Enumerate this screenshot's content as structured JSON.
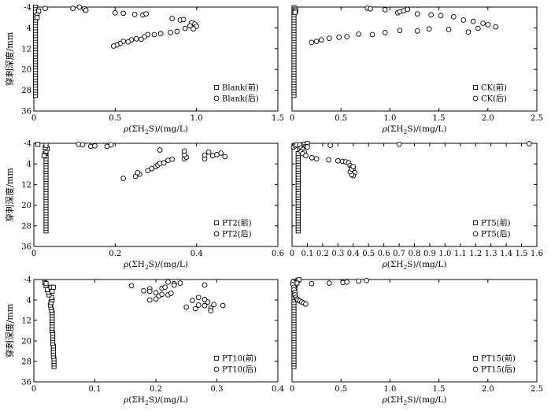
{
  "figure": {
    "ylabel": "穿刺深度/mm",
    "xlabel_prefix": "ρ(ΣH",
    "xlabel_sub": "2",
    "xlabel_suffix": "S)/(mg/L)"
  },
  "chart_data": [
    {
      "type": "scatter",
      "panel": "Blank",
      "xlim": [
        0,
        1.5
      ],
      "xticks": [
        "0",
        "0.5",
        "1.0",
        "1.5"
      ],
      "xtick_values": [
        0,
        0.5,
        1.0,
        1.5
      ],
      "ylim": [
        -4,
        36
      ],
      "yticks": [
        "-4",
        "4",
        "12",
        "20",
        "28",
        "36"
      ],
      "ytick_values": [
        -4,
        4,
        12,
        20,
        28,
        36
      ],
      "y_inverted": true,
      "legend_position": "lower-right",
      "series": [
        {
          "name": "Blank(前)",
          "marker": "square",
          "x": [
            0.01,
            0.01,
            0.01,
            0.01,
            0.01,
            0.01,
            0.01,
            0.01,
            0.01,
            0.01,
            0.01,
            0.01,
            0.01,
            0.01,
            0.01,
            0.01,
            0.01,
            0.01,
            0.01,
            0.01,
            0.01,
            0.01,
            0.01,
            0.01,
            0.01,
            0.01,
            0.01,
            0.01,
            0.01,
            0.01,
            0.01,
            0.01,
            0.01,
            0.01,
            0.01,
            0.01,
            0.01,
            0.02,
            0.02,
            0.03
          ],
          "y": [
            30,
            29,
            28,
            27,
            26,
            25,
            24,
            23,
            22,
            21,
            20,
            19,
            18,
            17,
            16,
            15,
            14,
            13,
            12,
            11,
            10,
            9,
            8,
            7,
            6,
            5,
            4,
            3,
            2,
            1,
            0,
            -1,
            -2,
            -3,
            -4,
            -3,
            -2,
            -1,
            0,
            -2.5
          ]
        },
        {
          "name": "Blank(后)",
          "marker": "circle",
          "x": [
            0.07,
            0.24,
            0.28,
            0.31,
            0.32,
            0.5,
            0.55,
            0.62,
            0.67,
            0.69,
            0.85,
            0.9,
            0.92,
            0.97,
            0.99,
            1.0,
            0.98,
            0.96,
            0.93,
            0.88,
            0.84,
            0.78,
            0.74,
            0.7,
            0.68,
            0.66,
            0.63,
            0.6,
            0.58,
            0.55,
            0.53,
            0.51,
            0.49
          ],
          "y": [
            -3.5,
            -3.5,
            -4,
            -3.3,
            -2.8,
            -1.8,
            -1.6,
            -1.2,
            -1.0,
            -1.4,
            0.4,
            1.0,
            0.8,
            2.0,
            2.5,
            3.4,
            4.4,
            3.2,
            4.2,
            5.4,
            5.8,
            6.2,
            6.6,
            6.6,
            7.4,
            8.4,
            8.2,
            8.6,
            9.4,
            9.2,
            10.0,
            10.6,
            11.0
          ]
        }
      ]
    },
    {
      "type": "scatter",
      "panel": "CK",
      "xlim": [
        0,
        2.5
      ],
      "xticks": [
        "0",
        "0.5",
        "1.0",
        "1.5",
        "2.0",
        "2.5"
      ],
      "xtick_values": [
        0,
        0.5,
        1.0,
        1.5,
        2.0,
        2.5
      ],
      "ylim": [
        -4,
        36
      ],
      "yticks": [],
      "ytick_values": [
        -4,
        4,
        12,
        20,
        28,
        36
      ],
      "y_inverted": true,
      "legend_position": "lower-right",
      "series": [
        {
          "name": "CK(前)",
          "marker": "square",
          "x": [
            0.02,
            0.02,
            0.02,
            0.02,
            0.02,
            0.02,
            0.02,
            0.02,
            0.02,
            0.02,
            0.02,
            0.02,
            0.02,
            0.02,
            0.02,
            0.02,
            0.02,
            0.02,
            0.02,
            0.02,
            0.02,
            0.02,
            0.02,
            0.02,
            0.02,
            0.02,
            0.02,
            0.02,
            0.02,
            0.02,
            0.02,
            0.02,
            0.02,
            0.02,
            0.02,
            0.03,
            0.04,
            0.03
          ],
          "y": [
            30,
            29,
            28,
            27,
            26,
            25,
            24,
            23,
            22,
            21,
            20,
            19,
            18,
            17,
            16,
            15,
            14,
            13,
            12,
            11,
            10,
            9,
            8,
            7,
            6,
            5,
            4,
            3,
            2,
            1,
            0,
            -1,
            -2,
            -3,
            -3.8,
            -3.2,
            -2.6,
            -2.0
          ]
        },
        {
          "name": "CK(后)",
          "marker": "circle",
          "x": [
            0.77,
            0.8,
            0.95,
            1.08,
            1.1,
            1.14,
            1.18,
            1.28,
            1.42,
            1.52,
            1.65,
            1.75,
            1.85,
            1.95,
            2.0,
            1.9,
            1.8,
            2.08,
            1.6,
            1.4,
            1.28,
            1.1,
            0.95,
            0.82,
            0.68,
            0.56,
            0.48,
            0.38,
            0.3,
            0.25,
            0.2
          ],
          "y": [
            -3.6,
            -3.3,
            -3.0,
            -1.8,
            -2.2,
            -2.6,
            -3.1,
            -1.4,
            -1.0,
            -0.7,
            -0.3,
            1.0,
            1.5,
            2.2,
            2.8,
            4.2,
            5.6,
            3.6,
            4.6,
            4.4,
            5.2,
            5.0,
            5.8,
            6.6,
            6.4,
            7.4,
            7.6,
            8.0,
            8.6,
            9.2,
            9.6
          ]
        }
      ]
    },
    {
      "type": "scatter",
      "panel": "PT2",
      "xlim": [
        0,
        0.6
      ],
      "xticks": [
        "0",
        "0.2",
        "0.4",
        "0.6"
      ],
      "xtick_values": [
        0,
        0.2,
        0.4,
        0.6
      ],
      "ylim": [
        -4,
        36
      ],
      "yticks": [
        "-4",
        "4",
        "12",
        "20",
        "28",
        "36"
      ],
      "ytick_values": [
        -4,
        4,
        12,
        20,
        28,
        36
      ],
      "y_inverted": true,
      "legend_position": "lower-right",
      "series": [
        {
          "name": "PT2(前)",
          "marker": "square",
          "x": [
            0.03,
            0.03,
            0.03,
            0.03,
            0.03,
            0.03,
            0.03,
            0.03,
            0.03,
            0.03,
            0.03,
            0.03,
            0.03,
            0.03,
            0.03,
            0.03,
            0.03,
            0.03,
            0.03,
            0.03,
            0.03,
            0.03,
            0.03,
            0.03,
            0.03,
            0.03,
            0.03,
            0.03,
            0.03,
            0.03,
            0.028,
            0.025,
            0.03,
            0.033,
            0.028,
            0.01,
            0.03
          ],
          "y": [
            30,
            29,
            28,
            27,
            26,
            25,
            24,
            23,
            22,
            21,
            20,
            19,
            18,
            17,
            16,
            15,
            14,
            13,
            12,
            11,
            10,
            9,
            8,
            7,
            6,
            5,
            4,
            3,
            2,
            1,
            0,
            0.8,
            -1,
            -2,
            -2.4,
            -3.6,
            -3.2
          ]
        },
        {
          "name": "PT2(后)",
          "marker": "circle",
          "x": [
            0.11,
            0.12,
            0.14,
            0.15,
            0.18,
            0.19,
            0.22,
            0.25,
            0.26,
            0.255,
            0.28,
            0.29,
            0.3,
            0.305,
            0.31,
            0.32,
            0.33,
            0.34,
            0.37,
            0.375,
            0.37,
            0.42,
            0.42,
            0.43,
            0.44,
            0.45,
            0.46,
            0.47,
            0.31,
            0.37
          ],
          "y": [
            -3.6,
            -3.4,
            -2.8,
            -3.0,
            -2.8,
            -3.4,
            9.6,
            8.8,
            8.0,
            7.4,
            6.6,
            5.8,
            5.0,
            4.4,
            3.8,
            3.6,
            2.6,
            2.2,
            2.0,
            1.4,
            0.4,
            2.0,
            0.6,
            -0.6,
            0.8,
            0.4,
            -0.2,
            1.2,
            -1.4,
            -1.0
          ]
        }
      ]
    },
    {
      "type": "scatter",
      "panel": "PT5",
      "xlim": [
        0,
        1.6
      ],
      "xticks": [
        "0",
        "0.1",
        "0.2",
        "0.3",
        "0.4",
        "0.5",
        "0.6",
        "0.7",
        "0.8",
        "0.9",
        "1.0",
        "1.1",
        "1.2",
        "1.3",
        "1.4",
        "1.5",
        "1.6"
      ],
      "xtick_values": [
        0,
        0.1,
        0.2,
        0.3,
        0.4,
        0.5,
        0.6,
        0.7,
        0.8,
        0.9,
        1.0,
        1.1,
        1.2,
        1.3,
        1.4,
        1.5,
        1.6
      ],
      "ylim": [
        -4,
        36
      ],
      "yticks": [],
      "ytick_values": [
        -4,
        4,
        12,
        20,
        28,
        36
      ],
      "y_inverted": true,
      "legend_position": "lower-right",
      "series": [
        {
          "name": "PT5(前)",
          "marker": "square",
          "x": [
            0.04,
            0.04,
            0.04,
            0.04,
            0.04,
            0.04,
            0.04,
            0.04,
            0.04,
            0.04,
            0.04,
            0.04,
            0.04,
            0.04,
            0.04,
            0.04,
            0.04,
            0.04,
            0.04,
            0.04,
            0.04,
            0.04,
            0.04,
            0.04,
            0.04,
            0.04,
            0.04,
            0.04,
            0.04,
            0.04,
            0.04,
            0.06,
            0.05,
            0.06,
            0.08,
            0.1,
            0.09,
            0.07
          ],
          "y": [
            30,
            29,
            28,
            27,
            26,
            25,
            24,
            23,
            22,
            21,
            20,
            19,
            18,
            17,
            16,
            15,
            14,
            13,
            12,
            11,
            10,
            9,
            8,
            7,
            6,
            5,
            4,
            3,
            2,
            1,
            0,
            -1,
            -2,
            -3,
            -3.6,
            -3.9,
            -2.8,
            -2.2
          ]
        },
        {
          "name": "PT5(后)",
          "marker": "circle",
          "x": [
            0.01,
            0.02,
            0.03,
            0.05,
            0.06,
            0.07,
            0.06,
            0.08,
            0.07,
            0.09,
            0.1,
            0.13,
            0.16,
            0.24,
            0.3,
            0.33,
            0.35,
            0.37,
            0.38,
            0.39,
            0.4,
            0.41,
            0.4,
            0.39,
            0.38,
            0.39,
            0.4,
            0.25,
            0.7,
            1.55
          ],
          "y": [
            -2.6,
            -3.0,
            -3.4,
            -3.4,
            -2.2,
            -1.6,
            -0.8,
            -0.6,
            0.0,
            0.8,
            -2.6,
            1.6,
            2.0,
            2.4,
            2.8,
            3.0,
            3.2,
            3.6,
            4.6,
            5.4,
            6.4,
            7.4,
            8.6,
            8.2,
            7.0,
            6.0,
            5.0,
            -3.2,
            -3.6,
            -3.8
          ]
        }
      ]
    },
    {
      "type": "scatter",
      "panel": "PT10",
      "xlim": [
        0,
        0.4
      ],
      "xticks": [
        "0",
        "0.1",
        "0.2",
        "0.3",
        "0.4"
      ],
      "xtick_values": [
        0,
        0.1,
        0.2,
        0.3,
        0.4
      ],
      "ylim": [
        -4,
        36
      ],
      "yticks": [
        "-4",
        "4",
        "12",
        "20",
        "28",
        "36"
      ],
      "ytick_values": [
        -4,
        4,
        12,
        20,
        28,
        36
      ],
      "y_inverted": true,
      "legend_position": "lower-right",
      "series": [
        {
          "name": "PT10(前)",
          "marker": "square",
          "x": [
            0.033,
            0.033,
            0.033,
            0.033,
            0.032,
            0.032,
            0.032,
            0.032,
            0.032,
            0.031,
            0.031,
            0.031,
            0.031,
            0.031,
            0.03,
            0.03,
            0.03,
            0.03,
            0.03,
            0.03,
            0.03,
            0.03,
            0.029,
            0.028,
            0.027,
            0.028,
            0.03,
            0.029,
            0.025,
            0.024,
            0.022,
            0.028,
            0.03,
            0.02,
            0.018,
            0.02,
            0.032
          ],
          "y": [
            30,
            29,
            28,
            27,
            26,
            25,
            24,
            23,
            22,
            21,
            20,
            19,
            18,
            17,
            16,
            15,
            14,
            13,
            12,
            11,
            10,
            9,
            8,
            7,
            6,
            5,
            4,
            3,
            2,
            1,
            0,
            -1,
            0.6,
            -1.6,
            -2.8,
            -2.4,
            -1.0
          ]
        },
        {
          "name": "PT10(后)",
          "marker": "circle",
          "x": [
            0.16,
            0.18,
            0.19,
            0.19,
            0.2,
            0.2,
            0.205,
            0.21,
            0.21,
            0.215,
            0.22,
            0.22,
            0.225,
            0.23,
            0.23,
            0.24,
            0.25,
            0.26,
            0.265,
            0.27,
            0.27,
            0.28,
            0.28,
            0.285,
            0.29,
            0.29,
            0.295,
            0.31,
            0.28,
            0.19
          ],
          "y": [
            -1.6,
            0.4,
            -0.4,
            4.0,
            1.2,
            3.6,
            2.4,
            -0.6,
            1.8,
            -1.0,
            -3.0,
            2.0,
            1.4,
            -2.4,
            -1.8,
            -2.6,
            6.8,
            4.2,
            7.4,
            3.0,
            6.0,
            6.2,
            -1.8,
            4.8,
            7.2,
            8.2,
            5.8,
            6.2,
            3.8,
            0.6
          ]
        }
      ]
    },
    {
      "type": "scatter",
      "panel": "PT15",
      "xlim": [
        0,
        2.5
      ],
      "xticks": [
        "0",
        "0.5",
        "1.0",
        "1.5",
        "2.0",
        "2.5"
      ],
      "xtick_values": [
        0,
        0.5,
        1.0,
        1.5,
        2.0,
        2.5
      ],
      "ylim": [
        -4,
        36
      ],
      "yticks": [],
      "ytick_values": [
        -4,
        4,
        12,
        20,
        28,
        36
      ],
      "y_inverted": true,
      "legend_position": "lower-right",
      "series": [
        {
          "name": "PT15(前)",
          "marker": "square",
          "x": [
            0.02,
            0.02,
            0.02,
            0.02,
            0.02,
            0.02,
            0.02,
            0.02,
            0.02,
            0.02,
            0.02,
            0.02,
            0.02,
            0.02,
            0.02,
            0.02,
            0.02,
            0.02,
            0.02,
            0.02,
            0.02,
            0.02,
            0.02,
            0.02,
            0.02,
            0.02,
            0.02,
            0.02,
            0.02,
            0.02,
            0.02,
            0.03,
            0.03,
            0.04,
            0.06,
            0.07,
            0.05
          ],
          "y": [
            30,
            29,
            28,
            27,
            26,
            25,
            24,
            23,
            22,
            21,
            20,
            19,
            18,
            17,
            16,
            15,
            14,
            13,
            12,
            11,
            10,
            9,
            8,
            7,
            6,
            5,
            4,
            3,
            2,
            1,
            0,
            -1,
            -2,
            -3,
            -3.6,
            -3.9,
            -2.6
          ]
        },
        {
          "name": "PT15(后)",
          "marker": "circle",
          "x": [
            0.01,
            0.01,
            0.02,
            0.02,
            0.03,
            0.03,
            0.04,
            0.05,
            0.06,
            0.08,
            0.1,
            0.12,
            0.14,
            0.2,
            0.38,
            0.52,
            0.56,
            0.68,
            0.76
          ],
          "y": [
            -3.0,
            -2.0,
            -1.0,
            0.0,
            1.0,
            2.0,
            3.0,
            3.6,
            4.0,
            4.4,
            4.8,
            5.2,
            5.6,
            -2.4,
            -2.6,
            -2.8,
            -3.0,
            -3.4,
            -3.6
          ]
        }
      ]
    }
  ]
}
